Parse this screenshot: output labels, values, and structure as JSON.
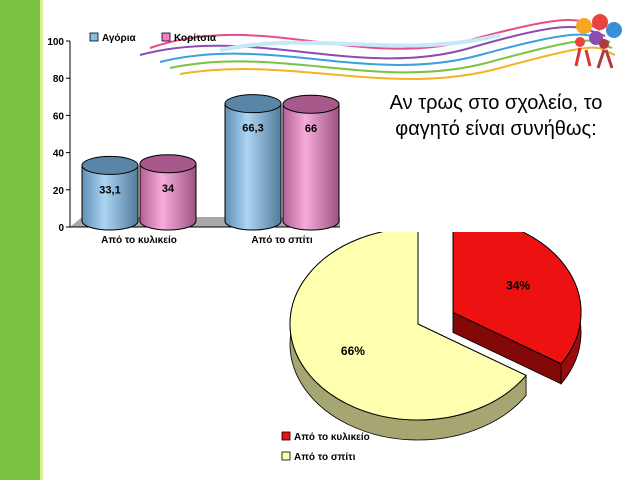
{
  "title_lines": [
    "Αν τρως στο σχολείο, το",
    "φαγητό είναι συνήθως:"
  ],
  "chart_data": [
    {
      "type": "bar",
      "categories": [
        "Από το κυλικείο",
        "Από το σπίτι"
      ],
      "series": [
        {
          "name": "Αγόρια",
          "values": [
            33.1,
            66.3
          ],
          "color": "#7fbfee"
        },
        {
          "name": "Κορίτσια",
          "values": [
            34,
            66
          ],
          "color": "#f07fc8"
        }
      ],
      "value_labels": [
        [
          "33,1",
          "66,3"
        ],
        [
          "34",
          "66"
        ]
      ],
      "ylim": [
        0,
        100
      ],
      "yticks": [
        "0",
        "20",
        "40",
        "60",
        "80",
        "100"
      ],
      "legend_position": "top",
      "style": "3d-cylinder"
    },
    {
      "type": "pie",
      "labels": [
        "Από το κυλικείο",
        "Από το σπίτι"
      ],
      "values": [
        34,
        66
      ],
      "value_labels": [
        "34%",
        "66%"
      ],
      "colors": [
        "#ee1111",
        "#ffffb0"
      ],
      "legend_position": "bottom-left",
      "style": "3d-exploded"
    }
  ],
  "colors": {
    "accent_green": "#7cc242",
    "background": "#ffffff"
  },
  "decor": {
    "top_swirl": "colorful-wave-ribbons",
    "corner_logo": "children-figures-logo"
  }
}
